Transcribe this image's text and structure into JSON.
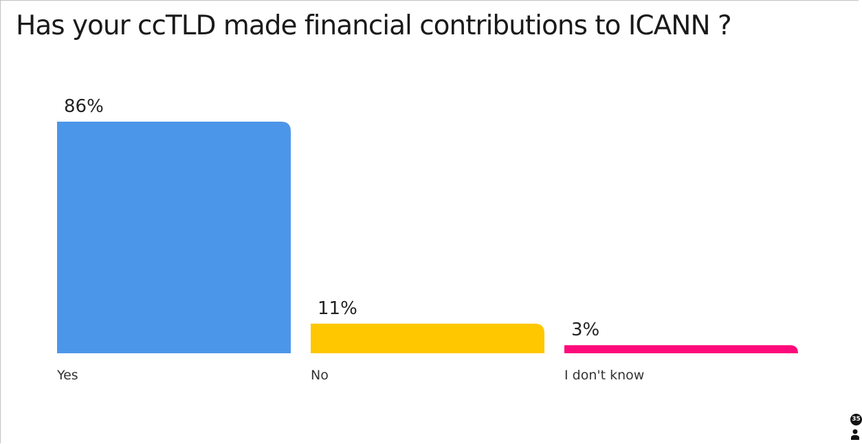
{
  "colors": {
    "yes": "#4c96ea",
    "no": "#ffc700",
    "dont_know": "#ff0a7a"
  },
  "participants": {
    "count": "35",
    "icon": "person-icon"
  },
  "chart_data": {
    "type": "bar",
    "title": "Has your ccTLD made financial contributions to ICANN ?",
    "categories": [
      "Yes",
      "No",
      "I don't know"
    ],
    "values": [
      86,
      11,
      3
    ],
    "value_labels": [
      "86%",
      "11%",
      "3%"
    ],
    "unit": "%",
    "ylim": [
      0,
      86
    ],
    "grid": false,
    "legend": "none"
  }
}
